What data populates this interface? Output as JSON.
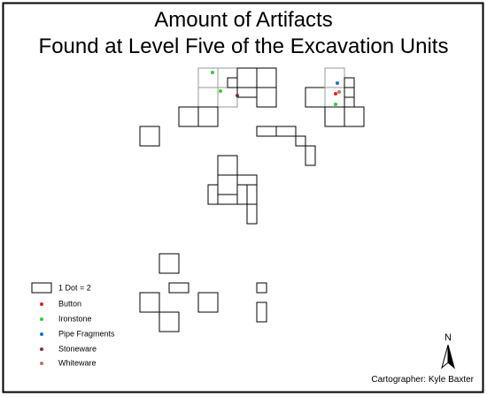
{
  "title": {
    "line1": "Amount of Artifacts",
    "line2": "Found at Level Five of the Excavation Units"
  },
  "legend": {
    "scale": "1 Dot = 2",
    "items": [
      "Button",
      "Ironstone",
      "Pipe Fragments",
      "Stoneware",
      "Whiteware"
    ]
  },
  "north": "N",
  "credit": "Cartographer: Kyle Baxter"
}
